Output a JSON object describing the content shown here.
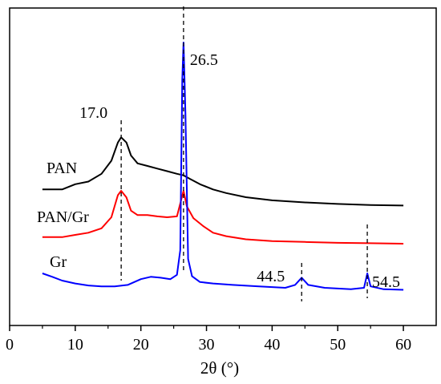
{
  "chart_data": {
    "type": "line",
    "title": "",
    "xlabel": "2θ (°)",
    "ylabel": "",
    "xlim": [
      0,
      65
    ],
    "x_ticks": [
      "0",
      "10",
      "20",
      "30",
      "40",
      "50",
      "60"
    ],
    "y_ticks_shown": false,
    "grid": false,
    "legend": "inline-labels",
    "series": [
      {
        "name": "PAN",
        "color": "#000000",
        "points": [
          [
            5,
            -0.05
          ],
          [
            8,
            -0.05
          ],
          [
            10,
            0.05
          ],
          [
            12,
            0.1
          ],
          [
            14,
            0.25
          ],
          [
            15.5,
            0.5
          ],
          [
            16.5,
            0.85
          ],
          [
            17,
            0.95
          ],
          [
            17.8,
            0.85
          ],
          [
            18.5,
            0.6
          ],
          [
            19.5,
            0.45
          ],
          [
            21,
            0.4
          ],
          [
            22.5,
            0.35
          ],
          [
            24,
            0.3
          ],
          [
            25.5,
            0.25
          ],
          [
            26.5,
            0.22
          ],
          [
            27.5,
            0.15
          ],
          [
            29,
            0.05
          ],
          [
            31,
            -0.05
          ],
          [
            33,
            -0.12
          ],
          [
            36,
            -0.2
          ],
          [
            40,
            -0.26
          ],
          [
            45,
            -0.3
          ],
          [
            50,
            -0.33
          ],
          [
            55,
            -0.35
          ],
          [
            60,
            -0.36
          ]
        ]
      },
      {
        "name": "PAN/Gr",
        "color": "#ff0000",
        "points": [
          [
            5,
            -0.05
          ],
          [
            8,
            -0.05
          ],
          [
            10,
            0.0
          ],
          [
            12,
            0.05
          ],
          [
            14,
            0.15
          ],
          [
            15.5,
            0.4
          ],
          [
            16.5,
            0.9
          ],
          [
            17,
            1.0
          ],
          [
            17.8,
            0.85
          ],
          [
            18.5,
            0.55
          ],
          [
            19.5,
            0.45
          ],
          [
            21,
            0.45
          ],
          [
            22.5,
            0.42
          ],
          [
            24,
            0.4
          ],
          [
            25.5,
            0.42
          ],
          [
            26.5,
            1.0
          ],
          [
            27,
            0.65
          ],
          [
            28,
            0.38
          ],
          [
            29.5,
            0.2
          ],
          [
            31,
            0.05
          ],
          [
            33,
            -0.03
          ],
          [
            36,
            -0.1
          ],
          [
            40,
            -0.14
          ],
          [
            45,
            -0.16
          ],
          [
            50,
            -0.18
          ],
          [
            55,
            -0.19
          ],
          [
            60,
            -0.2
          ]
        ]
      },
      {
        "name": "Gr",
        "color": "#0000ff",
        "points": [
          [
            5,
            0.5
          ],
          [
            6.5,
            0.38
          ],
          [
            8,
            0.25
          ],
          [
            10,
            0.15
          ],
          [
            12,
            0.08
          ],
          [
            14,
            0.05
          ],
          [
            16,
            0.05
          ],
          [
            18,
            0.1
          ],
          [
            20,
            0.3
          ],
          [
            21.5,
            0.38
          ],
          [
            23,
            0.35
          ],
          [
            24.5,
            0.3
          ],
          [
            25.5,
            0.45
          ],
          [
            26,
            1.3
          ],
          [
            26.3,
            7.2
          ],
          [
            26.5,
            8.5
          ],
          [
            26.8,
            6.0
          ],
          [
            27.2,
            1.0
          ],
          [
            27.8,
            0.4
          ],
          [
            29,
            0.2
          ],
          [
            31,
            0.15
          ],
          [
            34,
            0.1
          ],
          [
            38,
            0.05
          ],
          [
            42,
            0.0
          ],
          [
            43.5,
            0.1
          ],
          [
            44.5,
            0.35
          ],
          [
            45.5,
            0.1
          ],
          [
            48,
            0.0
          ],
          [
            52,
            -0.05
          ],
          [
            54,
            0.0
          ],
          [
            54.5,
            0.5
          ],
          [
            55,
            0.05
          ],
          [
            57,
            -0.05
          ],
          [
            60,
            -0.07
          ]
        ]
      }
    ],
    "peak_markers": [
      {
        "x": 17.0,
        "label": "17.0"
      },
      {
        "x": 26.5,
        "label": "26.5"
      },
      {
        "x": 44.5,
        "label": "44.5"
      },
      {
        "x": 54.5,
        "label": "54.5"
      }
    ]
  }
}
